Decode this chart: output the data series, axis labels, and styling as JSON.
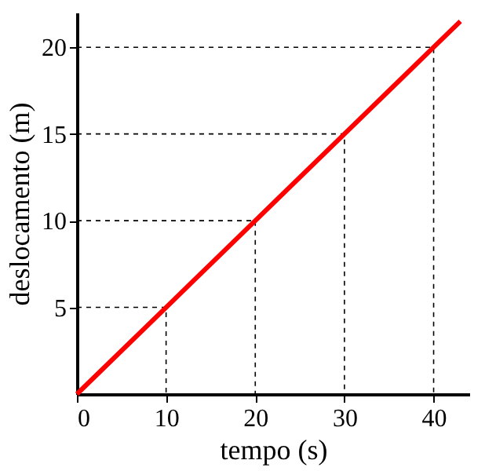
{
  "chart_data": {
    "type": "line",
    "xlabel": "tempo (s)",
    "ylabel": "deslocamento (m)",
    "x": [
      0,
      10,
      20,
      30,
      40,
      43
    ],
    "series": [
      {
        "color": "#ff0000",
        "values": [
          0,
          5,
          10,
          15,
          20,
          21.5
        ]
      },
      {
        "color": "#000000",
        "line_style": "dashed",
        "x": [
          0,
          10,
          10
        ],
        "values": [
          5,
          5,
          0
        ]
      },
      {
        "color": "#000000",
        "line_style": "dashed",
        "x": [
          0,
          20,
          20
        ],
        "values": [
          10,
          10,
          0
        ]
      },
      {
        "color": "#000000",
        "line_style": "dashed",
        "x": [
          0,
          30,
          30
        ],
        "values": [
          15,
          15,
          0
        ]
      },
      {
        "color": "#000000",
        "line_style": "dashed",
        "x": [
          0,
          40,
          40
        ],
        "values": [
          20,
          20,
          0
        ]
      }
    ],
    "xlim": [
      0,
      44
    ],
    "ylim": [
      0,
      22
    ],
    "xticks": [
      0,
      10,
      20,
      30,
      40
    ],
    "yticks": [
      5,
      10,
      15,
      20
    ],
    "marker": "none",
    "line_style": "solid"
  }
}
